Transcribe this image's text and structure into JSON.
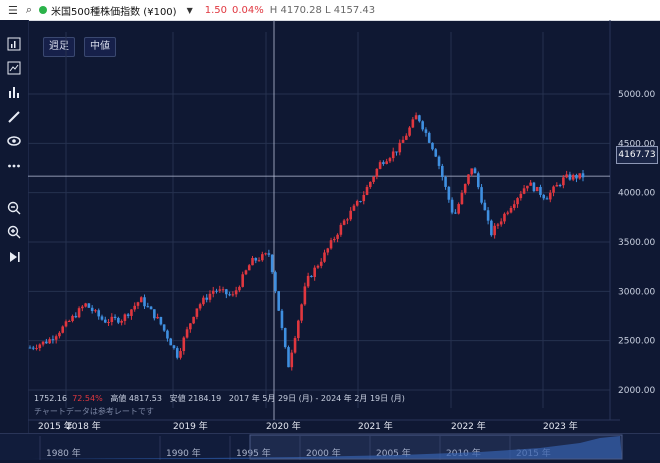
{
  "header": {
    "menu_icon": "menu-icon",
    "search_icon": "search-icon",
    "title": "米国500種株価指数 (¥100)",
    "change": "1.50",
    "change_pct": "0.04%",
    "high_low": "H 4170.28  L 4157.43"
  },
  "toolbar": {
    "tools": [
      "indicator-icon",
      "compare-icon",
      "bar-chart-icon",
      "draw-icon",
      "eye-icon",
      "more-icon",
      "zoom-out-icon",
      "zoom-in-icon",
      "replay-icon"
    ]
  },
  "chart_buttons": {
    "timeframe": "週足",
    "price_type": "中値"
  },
  "price_label": "4167.73",
  "info": {
    "change": "1752.16",
    "change_pct": "72.54%",
    "high": "高値 4817.53",
    "low": "安値 2184.19",
    "range": "2017 年 5月 29日 (月) - 2024 年 2月 19日 (月)",
    "note": "チャートデータは参考レートです"
  },
  "colors": {
    "up": "#e0373f",
    "down": "#3f8fe0",
    "bg": "#0f1833"
  },
  "chart_data": {
    "type": "candlestick",
    "y_ticks": [
      "5000.00",
      "4500.00",
      "4000.00",
      "3500.00",
      "3000.00",
      "2500.00",
      "2000.00"
    ],
    "y_range": [
      2000,
      5000
    ],
    "current": 4167.73,
    "x_ticks": [
      "2015 年",
      "2018 年",
      "2019 年",
      "2020 年",
      "2021 年",
      "2022 年",
      "2023 年"
    ],
    "navigator_ticks": [
      "1980 年",
      "1990 年",
      "1995 年",
      "2000 年",
      "2005 年",
      "2010 年",
      "2015 年"
    ],
    "series": [
      {
        "date": "2017-06",
        "close": 2430
      },
      {
        "date": "2017-09",
        "close": 2500
      },
      {
        "date": "2017-12",
        "close": 2670
      },
      {
        "date": "2018-01",
        "close": 2870
      },
      {
        "date": "2018-02",
        "close": 2700
      },
      {
        "date": "2018-05",
        "close": 2720
      },
      {
        "date": "2018-09",
        "close": 2920
      },
      {
        "date": "2018-10",
        "close": 2700
      },
      {
        "date": "2018-12",
        "close": 2350
      },
      {
        "date": "2019-03",
        "close": 2830
      },
      {
        "date": "2019-07",
        "close": 3020
      },
      {
        "date": "2019-10",
        "close": 2950
      },
      {
        "date": "2020-01",
        "close": 3300
      },
      {
        "date": "2020-02",
        "close": 3380
      },
      {
        "date": "2020-03",
        "close": 2230
      },
      {
        "date": "2020-06",
        "close": 3100
      },
      {
        "date": "2020-09",
        "close": 3380
      },
      {
        "date": "2020-12",
        "close": 3700
      },
      {
        "date": "2021-03",
        "close": 3950
      },
      {
        "date": "2021-06",
        "close": 4300
      },
      {
        "date": "2021-09",
        "close": 4450
      },
      {
        "date": "2022-01",
        "close": 4790
      },
      {
        "date": "2022-03",
        "close": 4400
      },
      {
        "date": "2022-06",
        "close": 3750
      },
      {
        "date": "2022-08",
        "close": 4280
      },
      {
        "date": "2022-10",
        "close": 3580
      },
      {
        "date": "2022-12",
        "close": 3850
      },
      {
        "date": "2023-02",
        "close": 4100
      },
      {
        "date": "2023-03",
        "close": 3950
      },
      {
        "date": "2023-04",
        "close": 4150
      },
      {
        "date": "2023-05",
        "close": 4168
      }
    ]
  }
}
